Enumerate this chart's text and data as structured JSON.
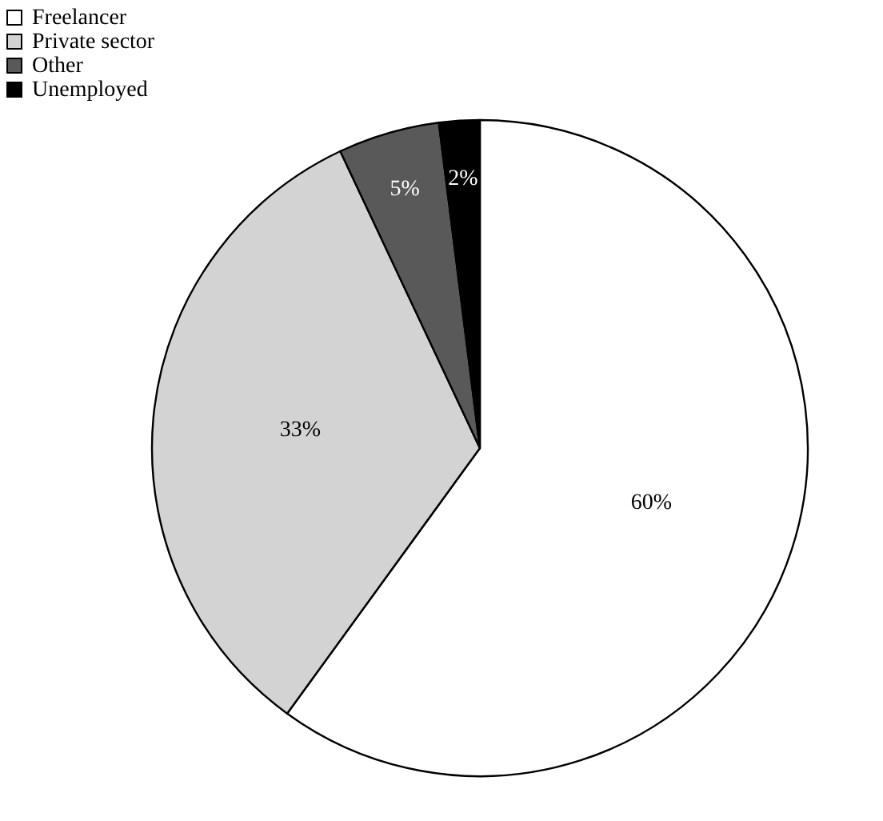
{
  "chart_data": {
    "type": "pie",
    "categories": [
      "Freelancer",
      "Private sector",
      "Other",
      "Unemployed"
    ],
    "values": [
      60,
      33,
      5,
      2
    ],
    "colors": [
      "#ffffff",
      "#d3d3d3",
      "#595959",
      "#000000"
    ],
    "value_labels": [
      "60%",
      "33%",
      "5%",
      "2%"
    ],
    "legend": "top left"
  }
}
